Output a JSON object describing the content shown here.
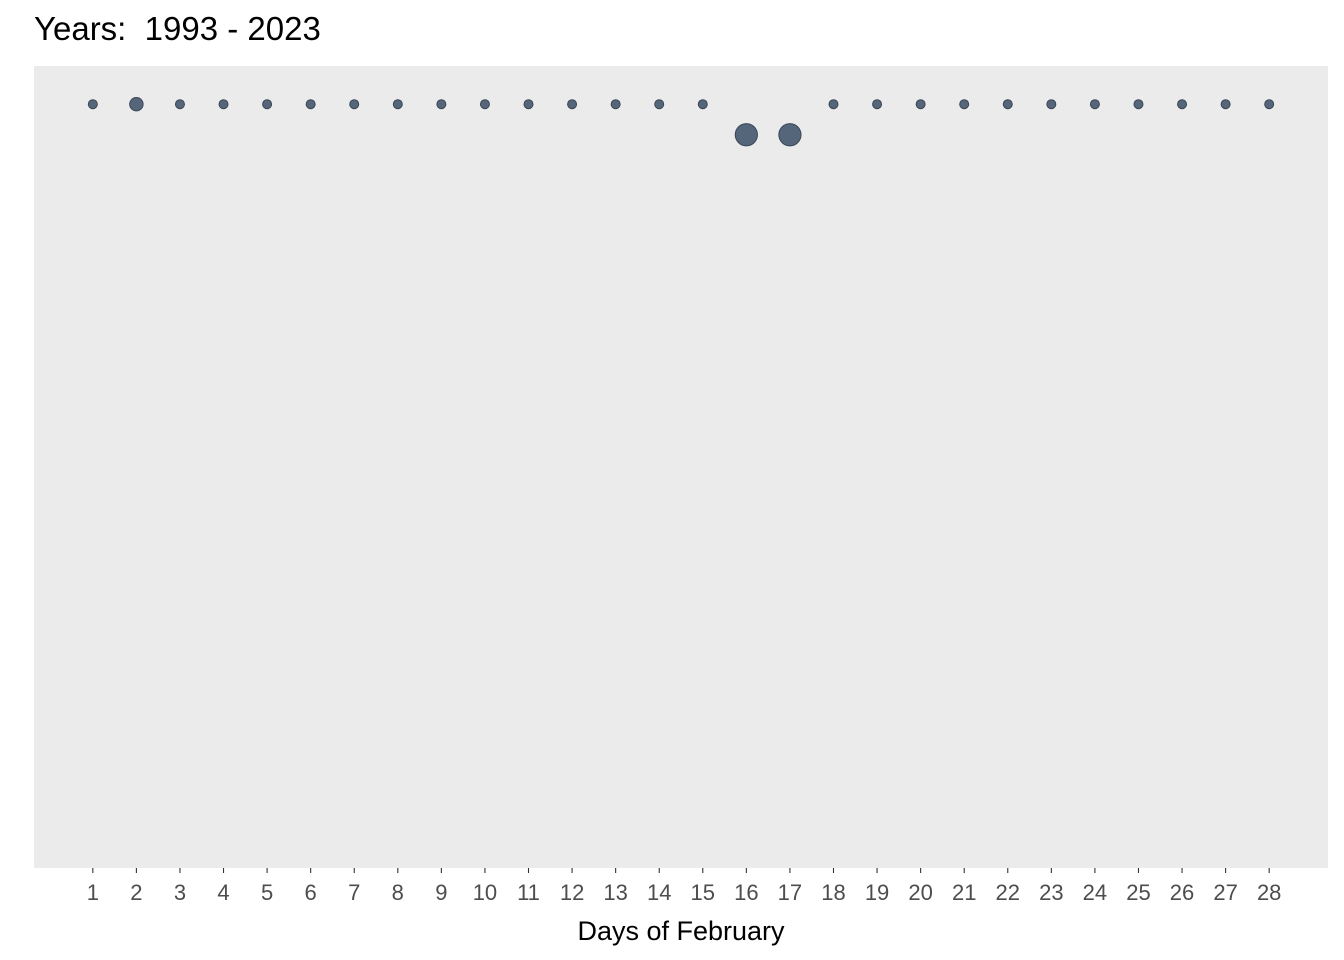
{
  "chart_data": {
    "type": "scatter",
    "title": "Years:  1993 - 2023",
    "xlabel": "Days of February",
    "ylabel": "",
    "x": [
      1,
      2,
      3,
      4,
      5,
      6,
      7,
      8,
      9,
      10,
      11,
      12,
      13,
      14,
      15,
      16,
      17,
      18,
      19,
      20,
      21,
      22,
      23,
      24,
      25,
      26,
      27,
      28
    ],
    "y": [
      1,
      1,
      1,
      1,
      1,
      1,
      1,
      1,
      1,
      1,
      1,
      1,
      1,
      1,
      1,
      0.96,
      0.96,
      1,
      1,
      1,
      1,
      1,
      1,
      1,
      1,
      1,
      1,
      1
    ],
    "size": [
      1,
      2,
      1,
      1,
      1,
      1,
      1,
      1,
      1,
      1,
      1,
      1,
      1,
      1,
      1,
      4,
      4,
      1,
      1,
      1,
      1,
      1,
      1,
      1,
      1,
      1,
      1,
      1
    ],
    "xlim": [
      -0.35,
      29.35
    ],
    "ylim": [
      0,
      1.05
    ],
    "xticks": [
      "1",
      "2",
      "3",
      "4",
      "5",
      "6",
      "7",
      "8",
      "9",
      "10",
      "11",
      "12",
      "13",
      "14",
      "15",
      "16",
      "17",
      "18",
      "19",
      "20",
      "21",
      "22",
      "23",
      "24",
      "25",
      "26",
      "27",
      "28"
    ],
    "point_color": "#55657a",
    "point_stroke": "#3a4656",
    "panel_color": "#ebebeb",
    "grid": false,
    "legend": "none"
  }
}
